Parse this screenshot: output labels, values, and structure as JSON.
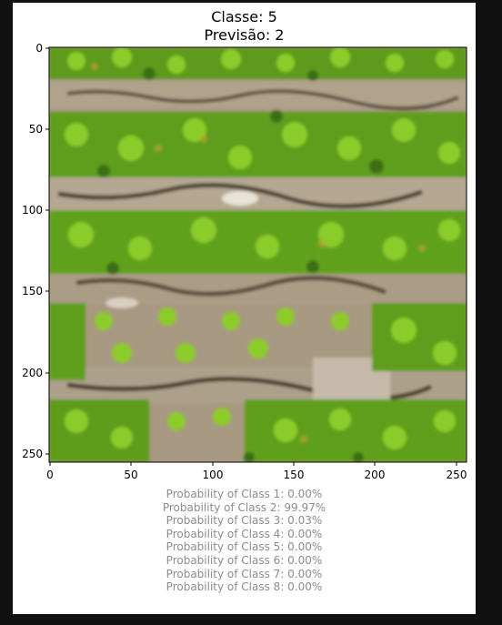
{
  "figure": {
    "title_line1": "Classe: 5",
    "title_line2": "Previsão: 2",
    "x_ticks": [
      "0",
      "50",
      "100",
      "150",
      "200",
      "250"
    ],
    "y_ticks": [
      "0",
      "50",
      "100",
      "150",
      "200",
      "250"
    ],
    "image_description": "aerial view of crop rows (green plants alternating with bare soil)"
  },
  "probabilities": [
    "Probability of Class 1: 0.00%",
    "Probability of Class 2: 99.97%",
    "Probability of Class 3: 0.03%",
    "Probability of Class 4: 0.00%",
    "Probability of Class 5: 0.00%",
    "Probability of Class 6: 0.00%",
    "Probability of Class 7: 0.00%",
    "Probability of Class 8: 0.00%"
  ],
  "colors": {
    "background": "#111111",
    "figure": "#ffffff",
    "probability_text": "#8c8c8c",
    "plant_green": "#6fb31e",
    "soil_brown": "#a89a82"
  }
}
